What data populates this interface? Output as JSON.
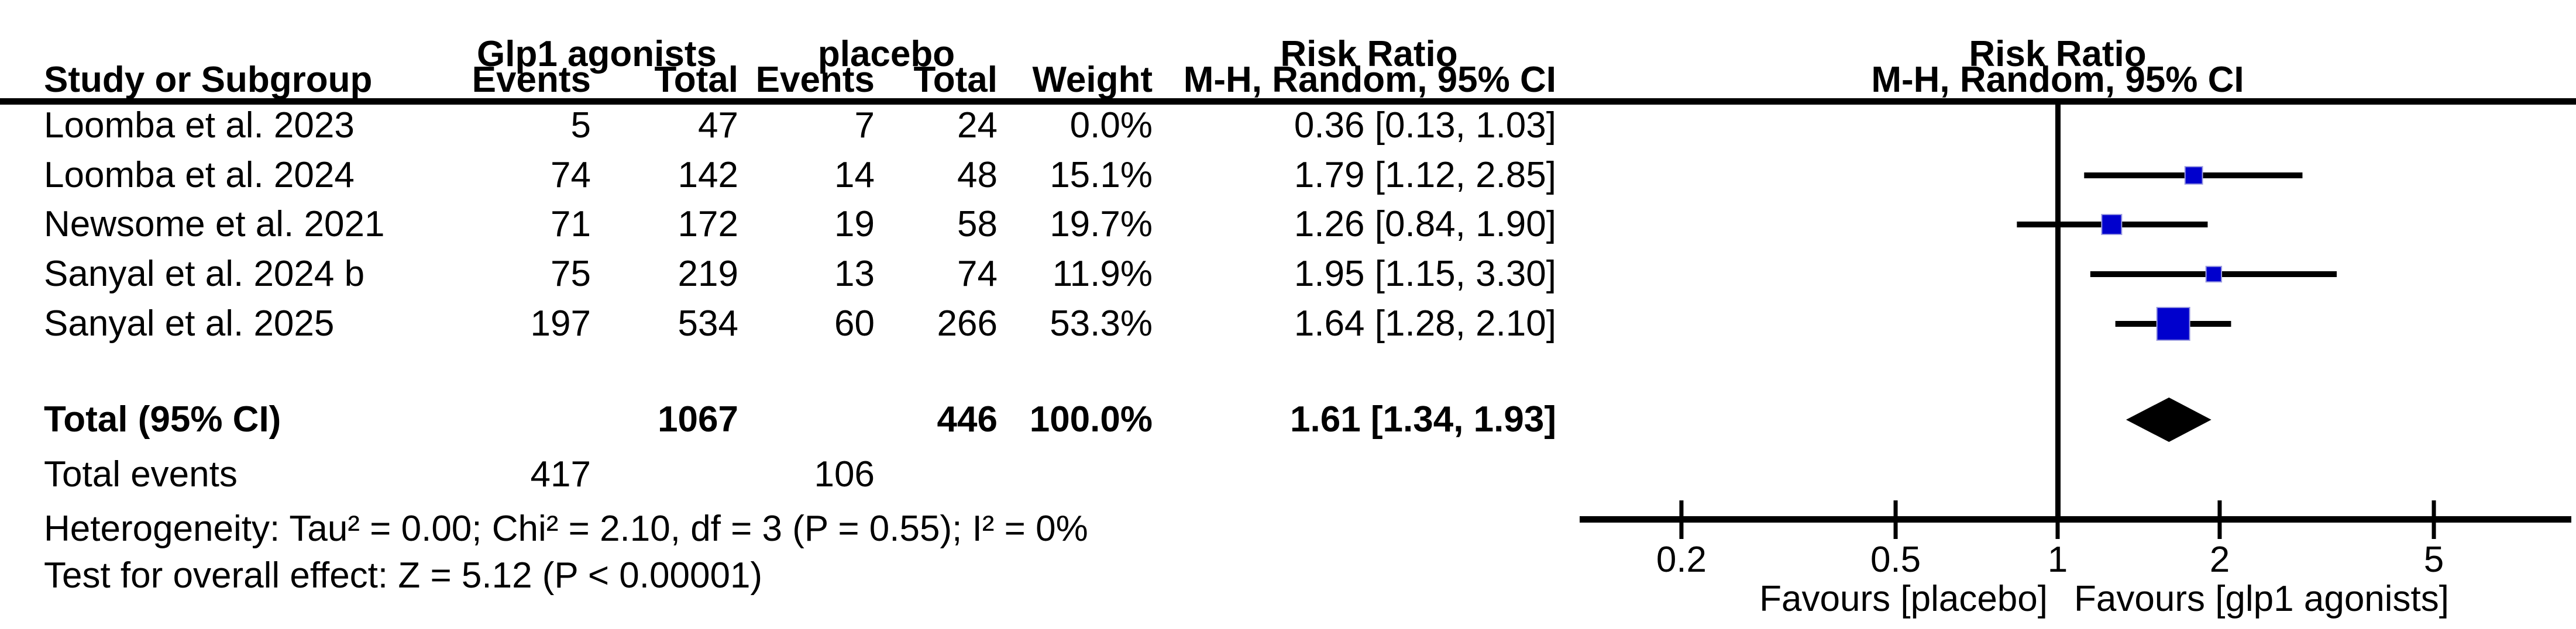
{
  "header": {
    "group1_label": "Glp1 agonists",
    "group2_label": "placebo",
    "risk_ratio_left": "Risk Ratio",
    "risk_ratio_right": "Risk Ratio",
    "col_study": "Study or Subgroup",
    "col_events1": "Events",
    "col_total1": "Total",
    "col_events2": "Events",
    "col_total2": "Total",
    "col_weight": "Weight",
    "col_method_left": "M-H, Random, 95% CI",
    "col_method_right": "M-H, Random, 95% CI"
  },
  "colors": {
    "effect_square": "#0000CD",
    "effect_square_border": "#9A9AE0",
    "diamond": "#000000",
    "line": "#000000"
  },
  "chart_data": {
    "type": "forest",
    "effect_measure": "Risk Ratio",
    "method": "M-H, Random, 95% CI",
    "x_scale": "log",
    "x_ticks": [
      0.2,
      0.5,
      1,
      2,
      5
    ],
    "x_range": [
      0.2,
      5
    ],
    "favours_left": "Favours [placebo]",
    "favours_right": "Favours [glp1 agonists]",
    "studies": [
      {
        "name": "Loomba et al. 2023",
        "events1": "5",
        "total1": "47",
        "events2": "7",
        "total2": "24",
        "weight": "0.0%",
        "weight_pct": 0,
        "rr": 0.36,
        "ci_low": 0.13,
        "ci_high": 1.03,
        "ci_text": "0.36 [0.13, 1.03]"
      },
      {
        "name": "Loomba et al. 2024",
        "events1": "74",
        "total1": "142",
        "events2": "14",
        "total2": "48",
        "weight": "15.1%",
        "weight_pct": 15.1,
        "rr": 1.79,
        "ci_low": 1.12,
        "ci_high": 2.85,
        "ci_text": "1.79 [1.12, 2.85]"
      },
      {
        "name": "Newsome et al. 2021",
        "events1": "71",
        "total1": "172",
        "events2": "19",
        "total2": "58",
        "weight": "19.7%",
        "weight_pct": 19.7,
        "rr": 1.26,
        "ci_low": 0.84,
        "ci_high": 1.9,
        "ci_text": "1.26 [0.84, 1.90]"
      },
      {
        "name": "Sanyal et al. 2024 b",
        "events1": "75",
        "total1": "219",
        "events2": "13",
        "total2": "74",
        "weight": "11.9%",
        "weight_pct": 11.9,
        "rr": 1.95,
        "ci_low": 1.15,
        "ci_high": 3.3,
        "ci_text": "1.95 [1.15, 3.30]"
      },
      {
        "name": "Sanyal et al. 2025",
        "events1": "197",
        "total1": "534",
        "events2": "60",
        "total2": "266",
        "weight": "53.3%",
        "weight_pct": 53.3,
        "rr": 1.64,
        "ci_low": 1.28,
        "ci_high": 2.1,
        "ci_text": "1.64 [1.28, 2.10]"
      }
    ],
    "total": {
      "label": "Total (95% CI)",
      "total1": "1067",
      "total2": "446",
      "weight": "100.0%",
      "rr": 1.61,
      "ci_low": 1.34,
      "ci_high": 1.93,
      "ci_text": "1.61 [1.34, 1.93]"
    },
    "total_events": {
      "label": "Total events",
      "events1": "417",
      "events2": "106"
    },
    "heterogeneity": "Heterogeneity: Tau² = 0.00; Chi² = 2.10, df = 3 (P = 0.55); I² = 0%",
    "overall_effect": "Test for overall effect: Z = 5.12 (P < 0.00001)"
  }
}
